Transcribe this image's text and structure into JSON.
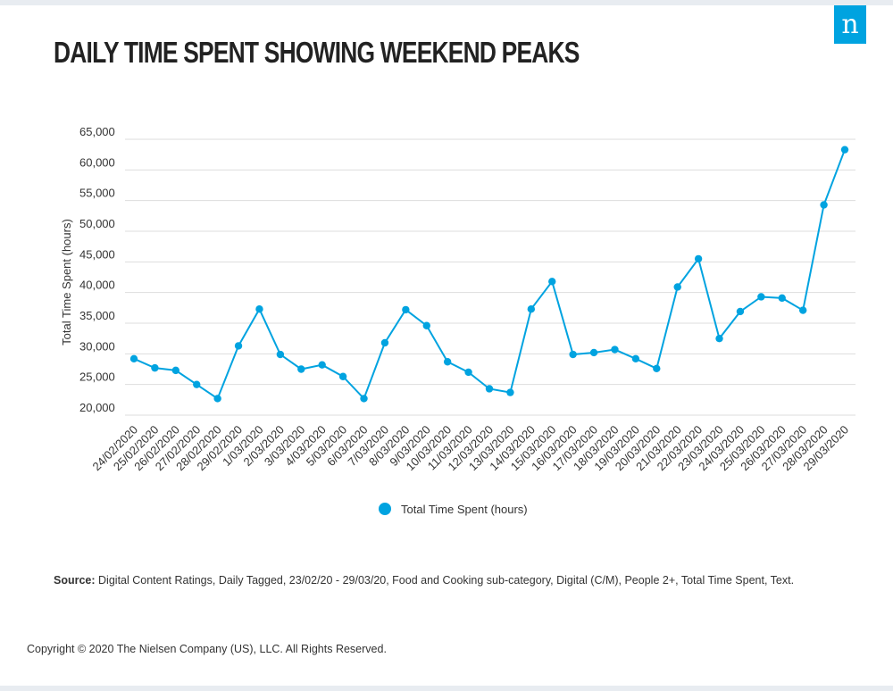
{
  "brand": {
    "logo_text": "n",
    "accent_color": "#00a3e0"
  },
  "title": "DAILY TIME SPENT SHOWING WEEKEND PEAKS",
  "source": {
    "label": "Source:",
    "text": "Digital Content Ratings, Daily Tagged, 23/02/20 - 29/03/20, Food and Cooking sub-category, Digital (C/M), People 2+, Total Time Spent, Text."
  },
  "copyright": "Copyright © 2020 The Nielsen Company (US), LLC. All Rights Reserved.",
  "chart_data": {
    "type": "line",
    "title": "",
    "xlabel": "",
    "ylabel": "Total Time Spent (hours)",
    "ylim": [
      20000,
      65000
    ],
    "yticks": [
      "20,000",
      "25,000",
      "30,000",
      "35,000",
      "40,000",
      "45,000",
      "50,000",
      "55,000",
      "60,000",
      "65,000"
    ],
    "grid": true,
    "legend_position": "bottom",
    "categories": [
      "24/02/2020",
      "25/02/2020",
      "26/02/2020",
      "27/02/2020",
      "28/02/2020",
      "29/02/2020",
      "1/03/2020",
      "2/03/2020",
      "3/03/2020",
      "4/03/2020",
      "5/03/2020",
      "6/03/2020",
      "7/03/2020",
      "8/03/2020",
      "9/03/2020",
      "10/03/2020",
      "11/03/2020",
      "12/03/2020",
      "13/03/2020",
      "14/03/2020",
      "15/03/2020",
      "16/03/2020",
      "17/03/2020",
      "18/03/2020",
      "19/03/2020",
      "20/03/2020",
      "21/03/2020",
      "22/03/2020",
      "23/03/2020",
      "24/03/2020",
      "25/03/2020",
      "26/03/2020",
      "27/03/2020",
      "28/03/2020",
      "29/03/2020"
    ],
    "series": [
      {
        "name": "Total Time Spent (hours)",
        "color": "#00a3e0",
        "values": [
          29200,
          27700,
          27300,
          25000,
          22700,
          31300,
          37300,
          29900,
          27500,
          28200,
          26300,
          22700,
          31800,
          37200,
          34600,
          28700,
          27000,
          24300,
          23700,
          37300,
          41800,
          29900,
          30200,
          30700,
          29200,
          27600,
          40900,
          45500,
          32500,
          36900,
          39300,
          39100,
          37100,
          54300,
          63300
        ]
      }
    ]
  }
}
